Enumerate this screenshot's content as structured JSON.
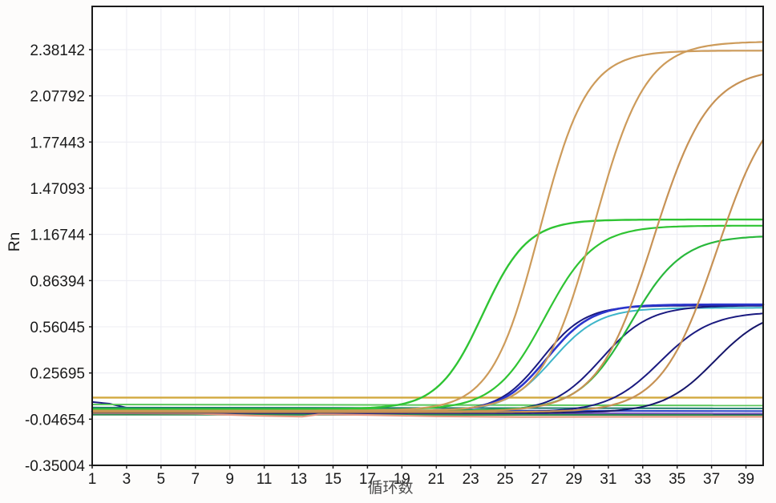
{
  "chart_data": {
    "type": "line",
    "description": "Real-time PCR amplification plot (Rn vs cycle number)",
    "xlabel": "循环数",
    "ylabel": "Rn",
    "x_range": [
      1,
      40
    ],
    "y_range": [
      -0.35004,
      2.66556
    ],
    "grid": true,
    "legend": "none",
    "x_tick_labels": [
      "1",
      "3",
      "5",
      "7",
      "9",
      "11",
      "13",
      "15",
      "17",
      "19",
      "21",
      "23",
      "25",
      "27",
      "29",
      "31",
      "33",
      "35",
      "37",
      "39"
    ],
    "x_tick_values": [
      1,
      3,
      5,
      7,
      9,
      11,
      13,
      15,
      17,
      19,
      21,
      23,
      25,
      27,
      29,
      31,
      33,
      35,
      37,
      39
    ],
    "y_tick_labels": [
      "2.38142",
      "2.07792",
      "1.77443",
      "1.47093",
      "1.16744",
      "0.86394",
      "0.56045",
      "0.25695",
      "-0.04654",
      "-0.35004"
    ],
    "y_tick_values": [
      2.38142,
      2.07792,
      1.77443,
      1.47093,
      1.16744,
      0.86394,
      0.56045,
      0.25695,
      -0.04654,
      -0.35004
    ],
    "threshold_line": {
      "name": "threshold",
      "value": 0.095,
      "color": "#D2A93F",
      "width": 2.4
    },
    "series": [
      {
        "name": "curve-cyan-1",
        "shape": "sigmoid",
        "color": "#3EB5C9",
        "width": 2.0,
        "baseline": 0.004,
        "plateau": 0.685,
        "midpoint": 27.75,
        "slope": 1.35
      },
      {
        "name": "curve-navy-1",
        "shape": "sigmoid",
        "color": "#1A1A80",
        "width": 2.0,
        "baseline": 0.004,
        "plateau": 0.7,
        "midpoint": 27.15,
        "slope": 1.25
      },
      {
        "name": "curve-navy-2",
        "shape": "sigmoid",
        "color": "#1A1A80",
        "width": 2.0,
        "baseline": 0.002,
        "plateau": 0.7,
        "midpoint": 30.6,
        "slope": 1.4
      },
      {
        "name": "curve-navy-3",
        "shape": "sigmoid",
        "color": "#1A1A80",
        "width": 2.0,
        "baseline": 0.0,
        "plateau": 0.66,
        "midpoint": 34.0,
        "slope": 1.5
      },
      {
        "name": "curve-navy-4",
        "shape": "sigmoid",
        "color": "#15156A",
        "width": 2.0,
        "baseline": -0.004,
        "plateau": 0.68,
        "midpoint": 37.2,
        "slope": 1.5
      },
      {
        "name": "curve-royalblue-1",
        "shape": "sigmoid",
        "color": "#2B35CC",
        "width": 2.6,
        "baseline": 0.004,
        "plateau": 0.707,
        "midpoint": 27.45,
        "slope": 1.3
      },
      {
        "name": "curve-green-1",
        "shape": "sigmoid",
        "color": "#2FC433",
        "width": 2.4,
        "baseline": 0.02,
        "plateau": 1.265,
        "midpoint": 23.7,
        "slope": 1.3
      },
      {
        "name": "curve-green-2",
        "shape": "sigmoid",
        "color": "#2FC433",
        "width": 2.2,
        "baseline": 0.015,
        "plateau": 1.225,
        "midpoint": 27.3,
        "slope": 1.45
      },
      {
        "name": "curve-green-3",
        "shape": "sigmoid",
        "color": "#29B83C",
        "width": 2.2,
        "baseline": 0.01,
        "plateau": 1.16,
        "midpoint": 32.3,
        "slope": 1.5
      },
      {
        "name": "curve-orange-1",
        "shape": "sigmoid",
        "color": "#CD9B5A",
        "width": 2.2,
        "baseline": 0.01,
        "plateau": 2.375,
        "midpoint": 27.0,
        "slope": 1.38
      },
      {
        "name": "curve-orange-2",
        "shape": "sigmoid",
        "color": "#CD9B5A",
        "width": 2.2,
        "baseline": 0.008,
        "plateau": 2.435,
        "midpoint": 30.15,
        "slope": 1.5
      },
      {
        "name": "curve-orange-3",
        "shape": "sigmoid",
        "color": "#C79255",
        "width": 2.2,
        "baseline": 0.004,
        "plateau": 2.26,
        "midpoint": 33.6,
        "slope": 1.6
      },
      {
        "name": "curve-orange-4",
        "shape": "sigmoid",
        "color": "#C79255",
        "width": 2.2,
        "baseline": 0.0,
        "plateau": 2.12,
        "midpoint": 37.3,
        "slope": 1.6
      }
    ],
    "baseline_lines": [
      {
        "name": "flat-navy-dip",
        "color": "#1A1A80",
        "width": 2.0,
        "points": [
          [
            1,
            0.066
          ],
          [
            2,
            0.055
          ],
          [
            3.5,
            0.015
          ],
          [
            5,
            -0.01
          ],
          [
            7,
            -0.014
          ],
          [
            40,
            -0.014
          ]
        ]
      },
      {
        "name": "flat-lightgreen",
        "color": "#5CC75C",
        "width": 2.0,
        "points": [
          [
            1,
            0.05
          ],
          [
            40,
            0.043
          ]
        ]
      },
      {
        "name": "flat-teal",
        "color": "#1F7A6E",
        "width": 2.0,
        "points": [
          [
            1,
            0.03
          ],
          [
            40,
            0.024
          ]
        ]
      },
      {
        "name": "flat-blue",
        "color": "#2C49C9",
        "width": 2.0,
        "points": [
          [
            1,
            0.013
          ],
          [
            40,
            0.007
          ]
        ]
      },
      {
        "name": "flat-purple",
        "color": "#9B79CF",
        "width": 2.0,
        "points": [
          [
            1,
            -0.001
          ],
          [
            40,
            -0.007
          ]
        ]
      },
      {
        "name": "flat-darkgreen",
        "color": "#2E8B50",
        "width": 2.0,
        "points": [
          [
            1,
            -0.017
          ],
          [
            40,
            -0.019
          ]
        ]
      },
      {
        "name": "flat-salmon",
        "color": "#E59880",
        "width": 2.2,
        "points": [
          [
            1,
            -0.006
          ],
          [
            7,
            -0.01
          ],
          [
            10.5,
            -0.024
          ],
          [
            13.2,
            -0.03
          ],
          [
            14.2,
            -0.015
          ],
          [
            17,
            -0.019
          ],
          [
            21,
            -0.028
          ],
          [
            26,
            -0.032
          ],
          [
            33,
            -0.031
          ],
          [
            40,
            -0.031
          ]
        ]
      }
    ],
    "colors": {
      "plot_background": "#ffffff",
      "outer_background": "#fdfcfb",
      "border": "#1a1a1a",
      "grid": "#ececf3",
      "tick_text": "#1a1a1a",
      "x_label_text": "#4d4d4d"
    }
  }
}
